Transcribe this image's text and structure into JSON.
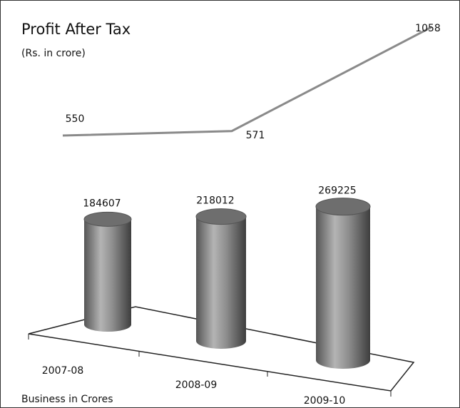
{
  "chart_data": [
    {
      "type": "line",
      "title": "Profit After Tax",
      "subtitle": "(Rs. in crore)",
      "categories": [
        "2007-08",
        "2008-09",
        "2009-10"
      ],
      "values": [
        550,
        571,
        1058
      ],
      "color": "#8a8a8a"
    },
    {
      "type": "bar",
      "x_label": "Business in Crores",
      "categories": [
        "2007-08",
        "2008-09",
        "2009-10"
      ],
      "values": [
        184607,
        218012,
        269225
      ],
      "color": "#8c8c8c"
    }
  ]
}
